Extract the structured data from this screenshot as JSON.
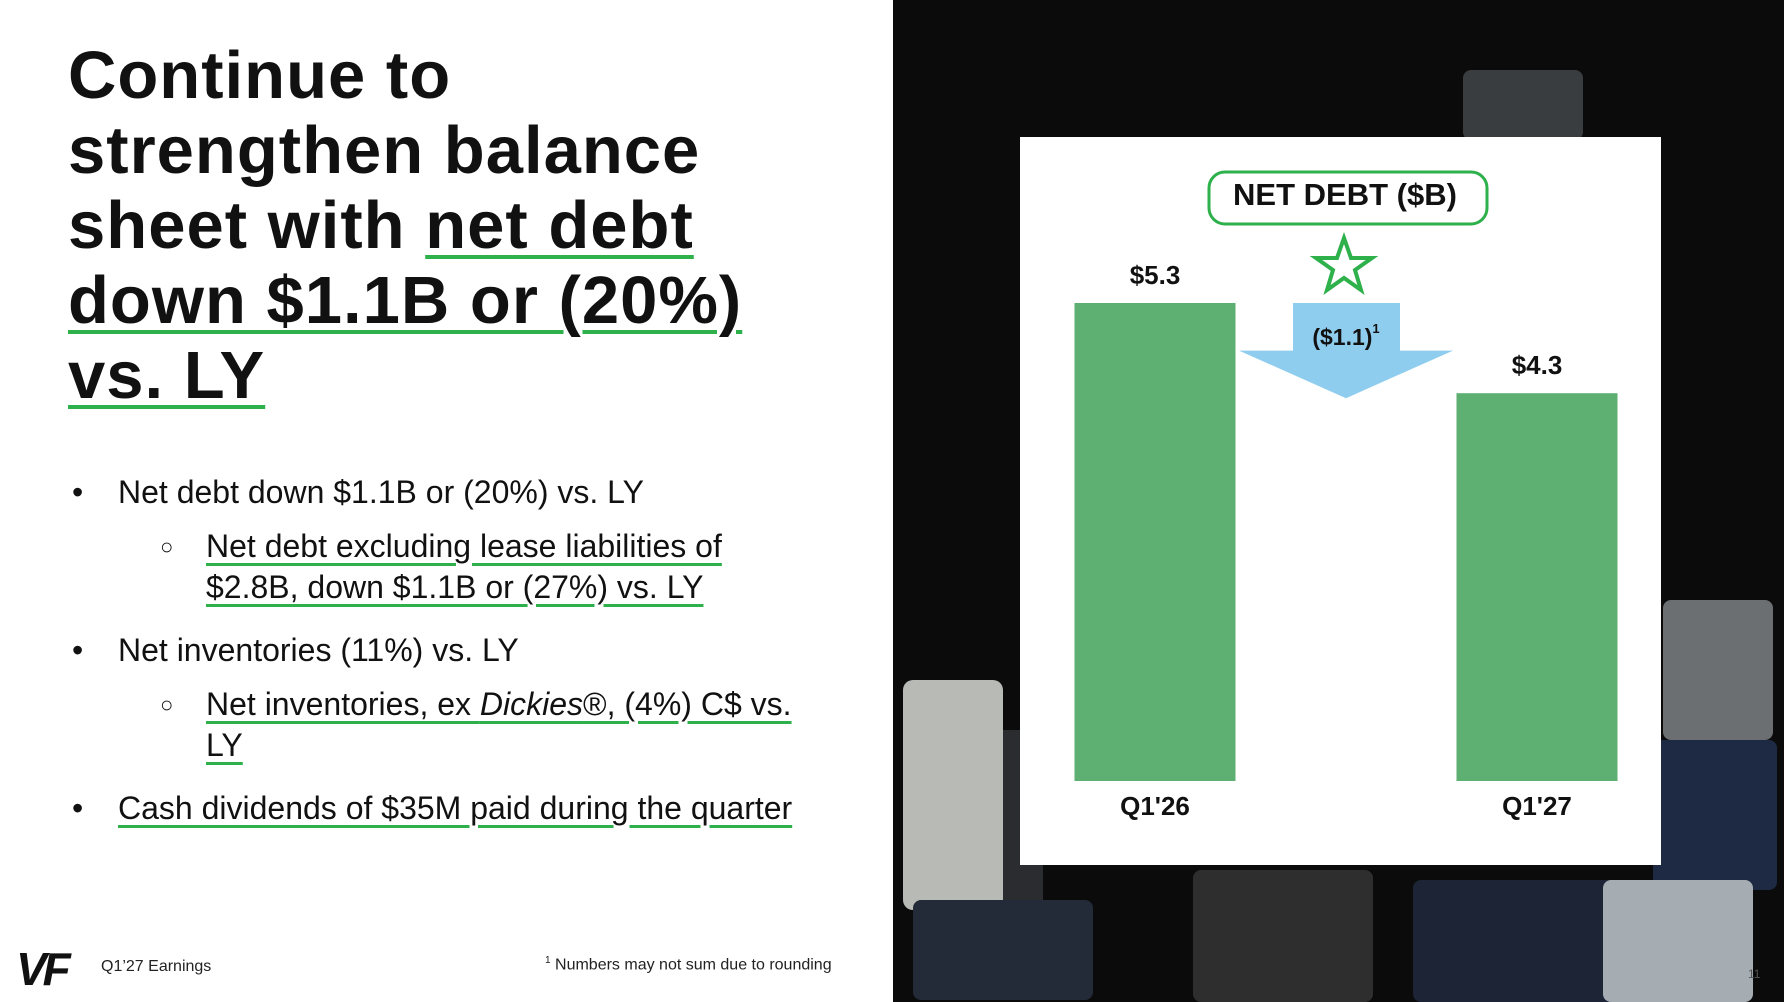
{
  "slide": {
    "heading": [
      "Continue to strengthen balance sheet with ",
      "net debt down $1.1B or (20%) vs. LY"
    ],
    "bullets": [
      {
        "text": "Net debt down $1.1B or (20%) vs. LY",
        "sub": [
          "Net debt excluding lease liabilities of $2.8B, down $1.1B or (27%) vs. LY"
        ]
      },
      {
        "text": "Net inventories (11%) vs. LY",
        "sub": [
          [
            "Net inventories, ex ",
            "Dickies",
            "®, (4%) C$ vs. LY"
          ]
        ]
      },
      {
        "text": "Cash dividends of $35M paid during the quarter"
      }
    ],
    "logo": "VF",
    "footer_left": "Q1’27 Earnings",
    "footnote_mark": "1",
    "footnote": "Numbers may not sum due to rounding",
    "page_number": "11"
  },
  "chart_data": {
    "type": "bar",
    "title": "NET DEBT ($B)",
    "categories": [
      "Q1'26",
      "Q1'27"
    ],
    "values": [
      5.3,
      4.3
    ],
    "value_labels": [
      "$5.3",
      "$4.3"
    ],
    "color": "#5daf72",
    "change": {
      "value": -1.1,
      "label": "($1.1)",
      "footnote_mark": "1",
      "color": "#8fcdee"
    }
  }
}
